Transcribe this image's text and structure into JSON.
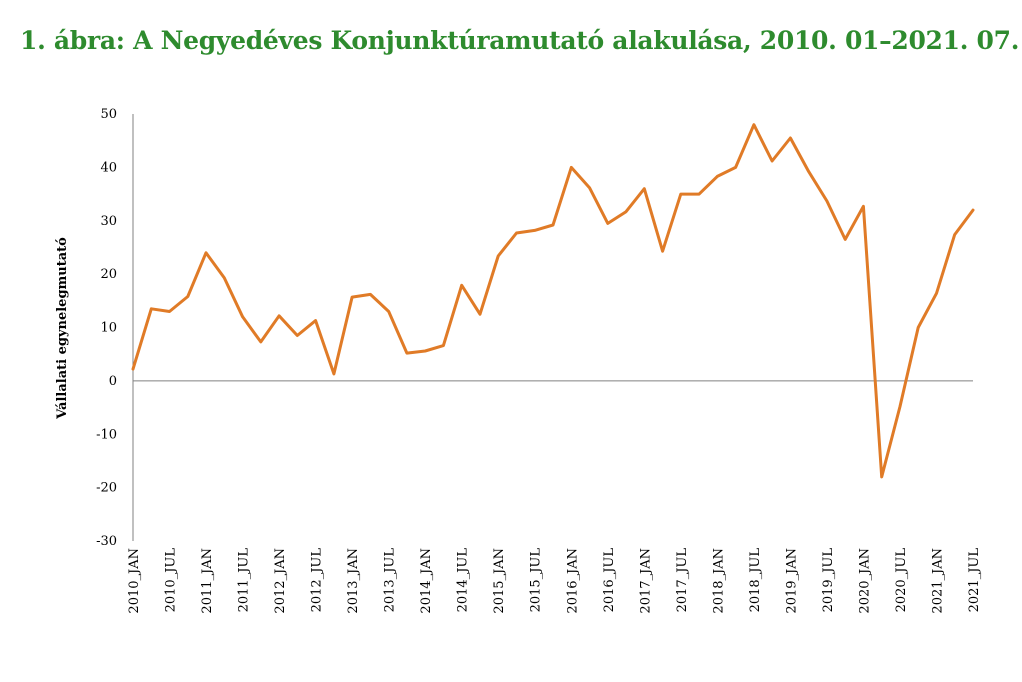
{
  "title": "1. ábra: A Negyedéves Konjunktúramutató alakulása, 2010. 01–2021. 07.",
  "colors": {
    "title": "#2e8b2e",
    "line": "#e07b27",
    "axis": "#808080"
  },
  "chart_data": {
    "type": "line",
    "title": "1. ábra: A Negyedéves Konjunktúramutató alakulása, 2010. 01–2021. 07.",
    "xlabel": "",
    "ylabel": "Vállalati egynelegmutató",
    "ylim": [
      -30,
      50
    ],
    "yticks": [
      50,
      40,
      30,
      20,
      10,
      0,
      -10,
      -20,
      -30
    ],
    "grid": false,
    "legend": "none",
    "tick_labels": [
      "2010_JAN",
      "2010_JUL",
      "2011_JAN",
      "2011_JUL",
      "2012_JAN",
      "2012_JUL",
      "2013_JAN",
      "2013_JUL",
      "2014_JAN",
      "2014_JUL",
      "2015_JAN",
      "2015_JUL",
      "2016_JAN",
      "2016_JUL",
      "2017_JAN",
      "2017_JUL",
      "2018_JAN",
      "2018_JUL",
      "2019_JAN",
      "2019_JUL",
      "2020_JAN",
      "2020_JUL",
      "2021_JAN",
      "2021_JUL"
    ],
    "series": [
      {
        "values": [
          2.2,
          13.5,
          13.0,
          15.8,
          24.0,
          19.3,
          12.0,
          7.3,
          12.2,
          8.5,
          11.3,
          1.3,
          15.7,
          16.2,
          13.0,
          5.2,
          5.6,
          6.6,
          17.9,
          12.5,
          23.4,
          27.7,
          28.2,
          29.2,
          40.0,
          36.2,
          29.5,
          31.7,
          36.0,
          24.3,
          35.0,
          35.0,
          38.3,
          40.0,
          48.0,
          41.2,
          45.5,
          39.2,
          33.7,
          26.5,
          32.7,
          -18.0,
          -4.8,
          10.0,
          16.4,
          27.4,
          32.0
        ]
      }
    ]
  }
}
